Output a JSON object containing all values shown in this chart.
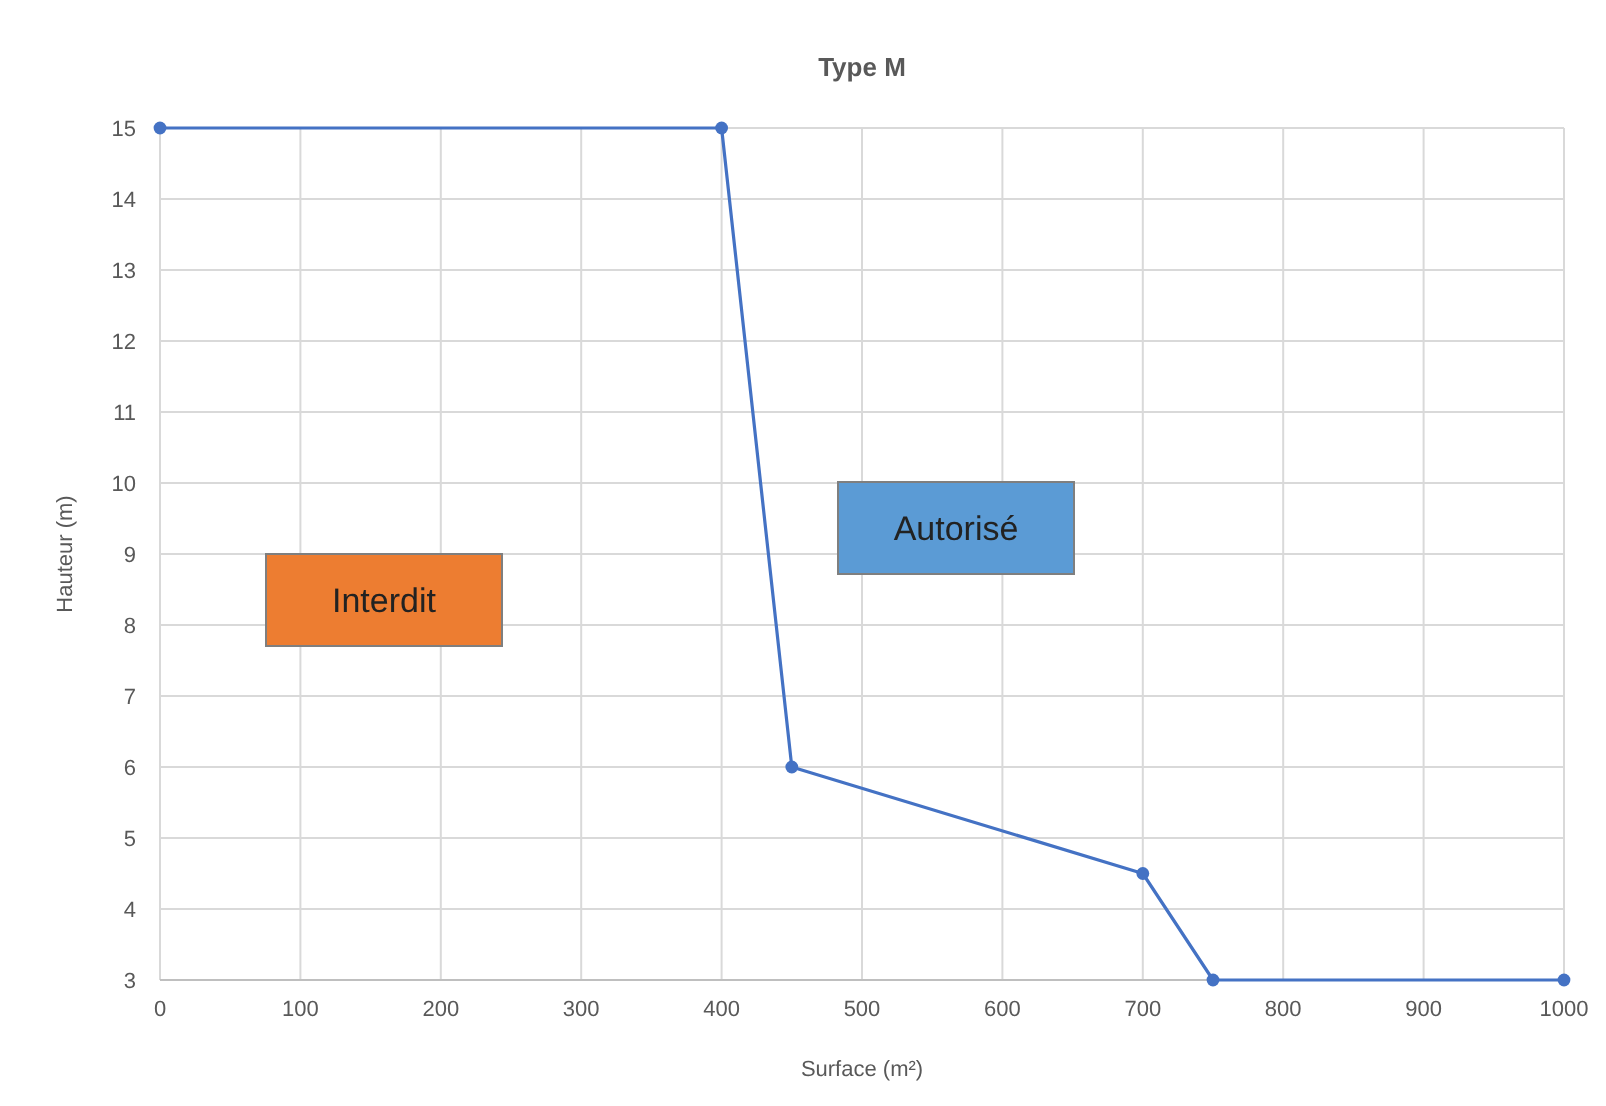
{
  "chart_data": {
    "type": "line",
    "title": "Type M",
    "xlabel": "Surface (m²)",
    "ylabel": "Hauteur (m)",
    "x": [
      0,
      400,
      450,
      700,
      750,
      1000
    ],
    "series": [
      {
        "color": "#4472c4",
        "values": [
          15,
          15,
          6,
          4.5,
          3,
          3
        ]
      }
    ],
    "xlim": [
      0,
      1000
    ],
    "xticks": [
      0,
      100,
      200,
      300,
      400,
      500,
      600,
      700,
      800,
      900,
      1000
    ],
    "ylim": [
      3,
      15
    ],
    "yticks": [
      3,
      4,
      5,
      6,
      7,
      8,
      9,
      10,
      11,
      12,
      13,
      14,
      15
    ],
    "grid": true,
    "marker": "circle",
    "line_style": "solid",
    "annotations": [
      "Interdit",
      "Autorisé"
    ]
  }
}
